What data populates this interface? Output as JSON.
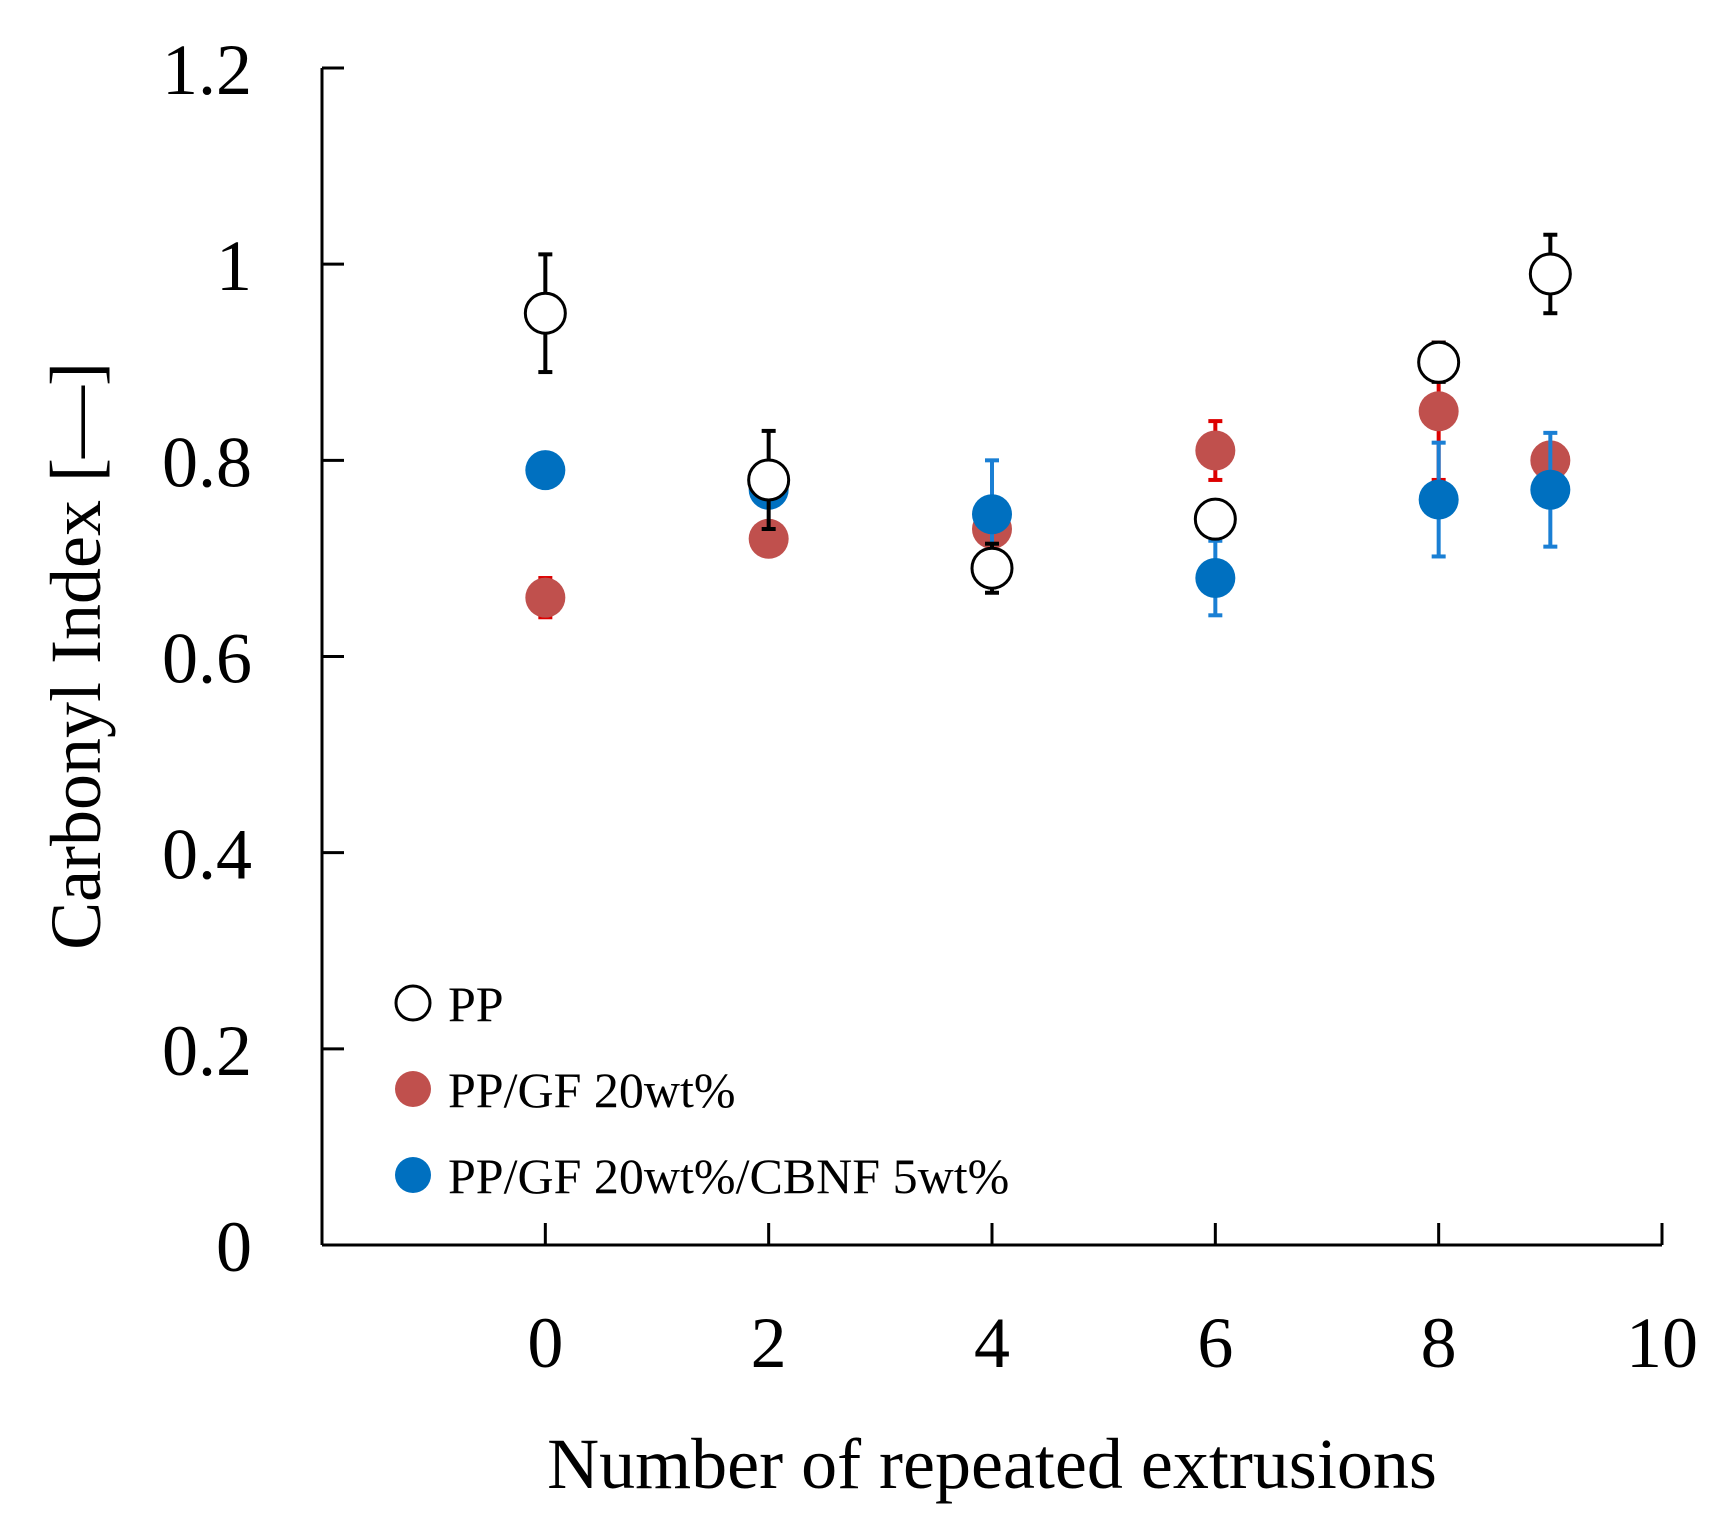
{
  "chart_data": {
    "type": "scatter",
    "title": "",
    "xlabel": "Number of repeated extrusions",
    "ylabel": "Carbonyl Index [—]",
    "xlim": [
      -2,
      10
    ],
    "ylim": [
      0,
      1.2
    ],
    "x_ticks": [
      0,
      2,
      4,
      6,
      8,
      10
    ],
    "x_tick_labels": [
      "0",
      "2",
      "4",
      "6",
      "8",
      "10"
    ],
    "y_ticks": [
      0,
      0.2,
      0.4,
      0.6,
      0.8,
      1.0,
      1.2
    ],
    "y_tick_labels": [
      "0",
      "0.2",
      "0.4",
      "0.6",
      "0.8",
      "1",
      "1.2"
    ],
    "grid": false,
    "legend_position": "bottom-left",
    "series": [
      {
        "name": "PP",
        "marker": "open-circle",
        "color": "#000000",
        "error_color": "#000000",
        "x": [
          0,
          2,
          4,
          6,
          8,
          9
        ],
        "y": [
          0.95,
          0.78,
          0.69,
          0.74,
          0.9,
          0.99
        ],
        "err": [
          0.06,
          0.05,
          0.025,
          0.0,
          0.02,
          0.04
        ]
      },
      {
        "name": "PP/GF 20wt%",
        "marker": "filled-circle",
        "color": "#c0504d",
        "error_color": "#dd0000",
        "x": [
          0,
          2,
          4,
          6,
          8,
          9
        ],
        "y": [
          0.66,
          0.72,
          0.73,
          0.81,
          0.85,
          0.8
        ],
        "err": [
          0.02,
          0.0,
          0.0,
          0.03,
          0.07,
          0.0
        ]
      },
      {
        "name": "PP/GF 20wt%/CBNF 5wt%",
        "marker": "filled-circle",
        "color": "#0070c0",
        "error_color": "#1a7fd4",
        "x": [
          0,
          2,
          4,
          6,
          8,
          9
        ],
        "y": [
          0.79,
          0.77,
          0.745,
          0.68,
          0.76,
          0.77
        ],
        "err": [
          0.0,
          0.0,
          0.055,
          0.038,
          0.058,
          0.058
        ]
      }
    ]
  }
}
